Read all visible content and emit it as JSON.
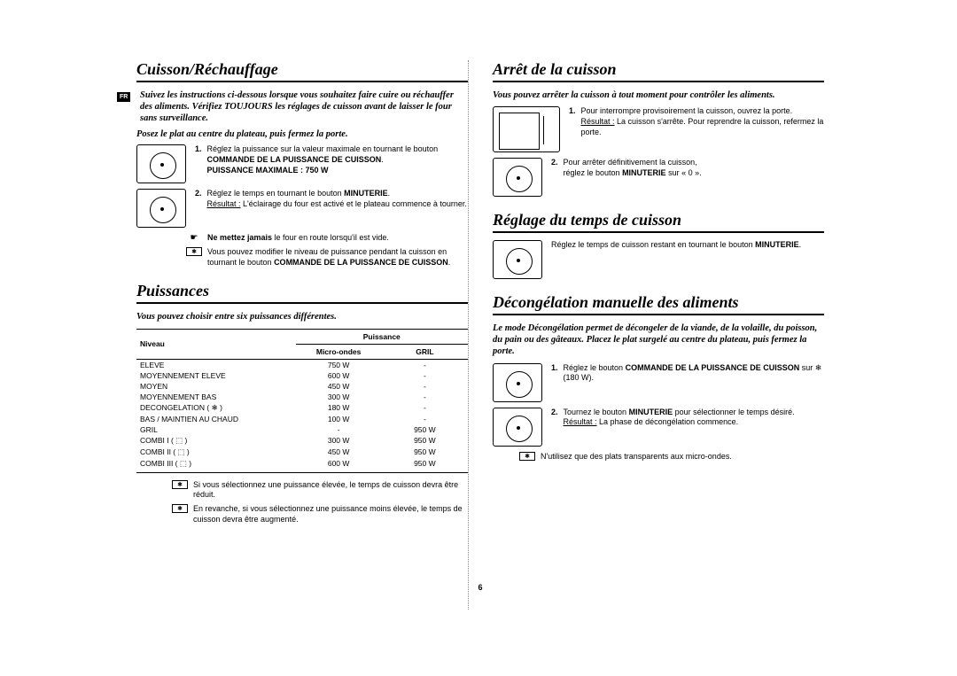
{
  "page_number": "6",
  "lang_tag": "FR",
  "left": {
    "s1": {
      "title": "Cuisson/Réchauffage",
      "intro": "Suivez les instructions ci-dessous lorsque vous souhaitez faire cuire ou réchauffer des aliments. Vérifiez TOUJOURS les réglages de cuisson avant de laisser le four sans surveillance.",
      "sub": "Posez le plat au centre du plateau, puis fermez la porte.",
      "step1_num": "1.",
      "step1_a": "Réglez la puissance sur la valeur maximale en tournant le bouton ",
      "step1_b": "COMMANDE DE LA PUISSANCE DE CUISSON",
      "step1_c": ".",
      "step1_d": "PUISSANCE MAXIMALE : 750 W",
      "step2_num": "2.",
      "step2_a": "Réglez le temps en tournant le bouton ",
      "step2_b": "MINUTERIE",
      "step2_c": ".",
      "step2_res_lbl": "Résultat :",
      "step2_res": " L'éclairage du four est activé et le plateau commence à tourner.",
      "warn_a": "Ne mettez jamais",
      "warn_b": " le four en route lorsqu'il est vide.",
      "note_a": "Vous pouvez modifier le niveau de puissance pendant la cuisson en tournant le bouton ",
      "note_b": "COMMANDE DE LA PUISSANCE DE CUISSON",
      "note_c": "."
    },
    "s2": {
      "title": "Puissances",
      "intro": "Vous pouvez choisir entre six puissances différentes.",
      "col1": "Niveau",
      "col2": "Puissance",
      "col2a": "Micro-ondes",
      "col2b": "GRIL",
      "rows": [
        [
          "ELEVE",
          "750 W",
          "-"
        ],
        [
          "MOYENNEMENT ELEVE",
          "600 W",
          "-"
        ],
        [
          "MOYEN",
          "450 W",
          "-"
        ],
        [
          "MOYENNEMENT BAS",
          "300 W",
          "-"
        ],
        [
          "DECONGELATION ( ❄ )",
          "180 W",
          "-"
        ],
        [
          "BAS / MAINTIEN AU CHAUD",
          "100 W",
          "-"
        ],
        [
          "GRIL",
          "-",
          "950 W"
        ],
        [
          "COMBI I   ( ⬚ )",
          "300 W",
          "950 W"
        ],
        [
          "COMBI II  ( ⬚ )",
          "450 W",
          "950 W"
        ],
        [
          "COMBI III ( ⬚ )",
          "600 W",
          "950 W"
        ]
      ],
      "note1": "Si vous sélectionnez une puissance élevée, le temps de cuisson devra être réduit.",
      "note2": "En revanche, si vous sélectionnez une puissance moins élevée, le temps de cuisson devra être augmenté."
    }
  },
  "right": {
    "s1": {
      "title": "Arrêt de la cuisson",
      "intro": "Vous pouvez arrêter la cuisson à tout moment pour contrôler les aliments.",
      "step1_num": "1.",
      "step1_a": "Pour interrompre provisoirement la cuisson, ouvrez la porte.",
      "step1_res_lbl": "Résultat :",
      "step1_res": " La cuisson s'arrête. Pour reprendre la cuisson, refermez la porte.",
      "step2_num": "2.",
      "step2_a": "Pour arrêter définitivement la cuisson,",
      "step2_b": "réglez le bouton ",
      "step2_c": "MINUTERIE",
      "step2_d": " sur « 0 »."
    },
    "s2": {
      "title": "Réglage du temps de cuisson",
      "text_a": "Réglez le temps de cuisson restant en tournant le bouton ",
      "text_b": "MINUTERIE",
      "text_c": "."
    },
    "s3": {
      "title": "Décongélation manuelle des aliments",
      "intro": "Le mode Décongélation permet de décongeler de la viande, de la volaille, du poisson, du pain ou des gâteaux. Placez le plat surgelé au centre du plateau, puis fermez la porte.",
      "step1_num": "1.",
      "step1_a": "Réglez le bouton ",
      "step1_b": "COMMANDE DE LA PUISSANCE DE CUISSON",
      "step1_c": " sur ",
      "step1_d": " (180 W).",
      "step2_num": "2.",
      "step2_a": "Tournez le bouton ",
      "step2_b": "MINUTERIE",
      "step2_c": " pour sélectionner le temps désiré.",
      "step2_res_lbl": "Résultat :",
      "step2_res": " La phase de décongélation commence.",
      "note": "N'utilisez que des plats transparents aux micro-ondes."
    }
  }
}
